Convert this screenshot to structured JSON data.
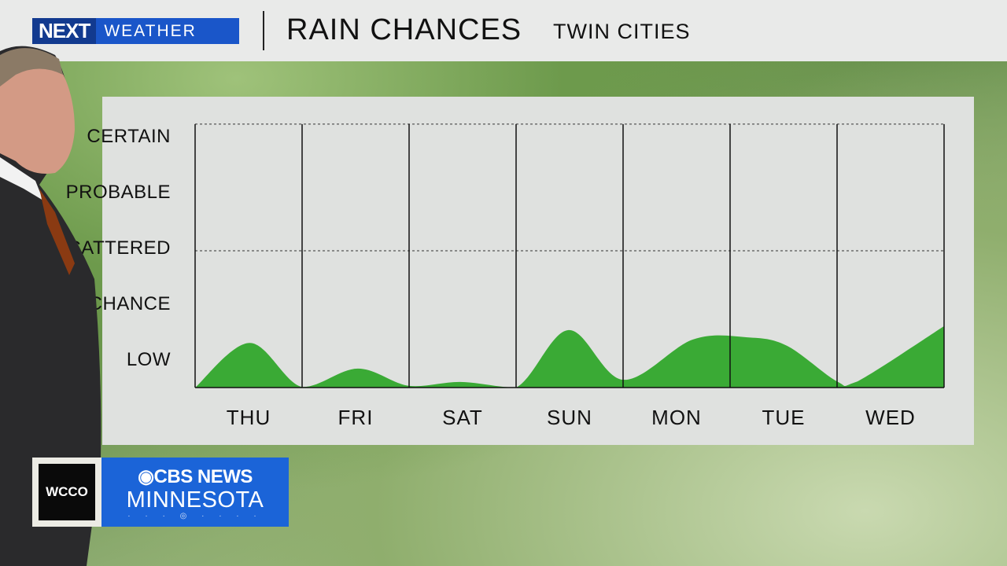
{
  "header": {
    "brand_next": "NEXT",
    "brand_weather": "WEATHER",
    "title": "RAIN CHANCES",
    "location": "TWIN CITIES"
  },
  "station": {
    "call_sign": "WCCO",
    "network": "CBS NEWS",
    "region": "MINNESOTA"
  },
  "colors": {
    "fill": "#3aaa35",
    "panel": "#dfe1df",
    "brand_blue": "#1a56c9"
  },
  "chart_data": {
    "type": "area",
    "title": "RAIN CHANCES",
    "categories": [
      "THU",
      "FRI",
      "SAT",
      "SUN",
      "MON",
      "TUE",
      "WED"
    ],
    "y_levels": [
      "LOW",
      "CHANCE",
      "SCATTERED",
      "PROBABLE",
      "CERTAIN"
    ],
    "ylim": [
      0,
      4.72
    ],
    "dashed_gridlines": [
      2.45,
      4.72
    ],
    "series": [
      {
        "name": "Rain chance",
        "points": [
          [
            0,
            0
          ],
          [
            0.51,
            0.8
          ],
          [
            1.0,
            0.01
          ],
          [
            1.52,
            0.34
          ],
          [
            2.0,
            0.03
          ],
          [
            2.48,
            0.1
          ],
          [
            3.0,
            0
          ],
          [
            3.49,
            1.03
          ],
          [
            4.0,
            0.14
          ],
          [
            4.65,
            0.86
          ],
          [
            5.16,
            0.9
          ],
          [
            5.53,
            0.75
          ],
          [
            6.0,
            0.11
          ],
          [
            6.19,
            0.11
          ],
          [
            7,
            1.1
          ]
        ]
      }
    ]
  }
}
